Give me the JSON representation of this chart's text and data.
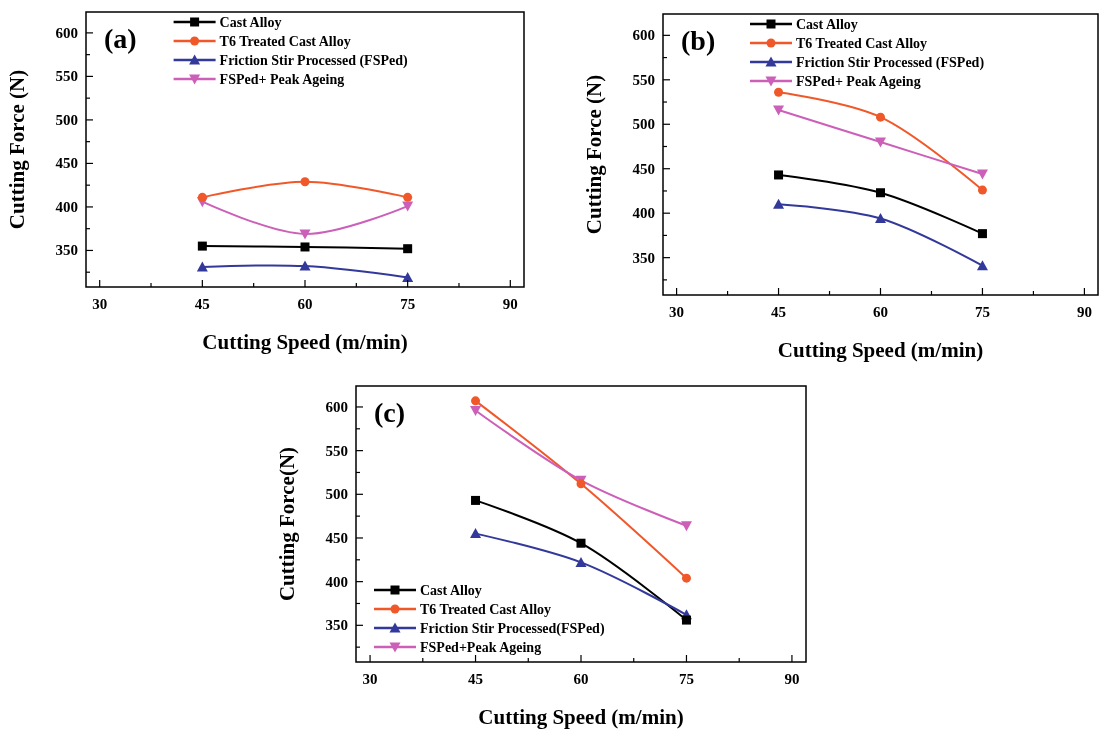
{
  "chart_data": [
    {
      "type": "line",
      "title": "(a)",
      "xlabel": "Cutting Speed (m/min)",
      "ylabel": "Cutting Force (N)",
      "x": [
        45,
        60,
        75
      ],
      "xlim": [
        28,
        92
      ],
      "ylim": [
        308,
        624
      ],
      "xticks": [
        30,
        {
          "value": 37.5,
          "label": null
        },
        45,
        {
          "value": 52.5,
          "label": null
        },
        60,
        {
          "value": 67.5,
          "label": null
        },
        75,
        {
          "value": 82.5,
          "label": null
        },
        90
      ],
      "yticks": [
        {
          "value": 325,
          "label": null
        },
        350,
        {
          "value": 375,
          "label": null
        },
        400,
        {
          "value": 425,
          "label": null
        },
        450,
        {
          "value": 475,
          "label": null
        },
        500,
        {
          "value": 525,
          "label": null
        },
        550,
        {
          "value": 575,
          "label": null
        },
        600
      ],
      "legend": "top",
      "grid": false,
      "line_style": "solid",
      "series": [
        {
          "name": "Cast Alloy",
          "color": "#000000",
          "marker": "square",
          "values": [
            355,
            354,
            352
          ]
        },
        {
          "name": "T6 Treated Cast Alloy",
          "color": "#f0582a",
          "marker": "circle",
          "values": [
            411,
            429,
            411
          ]
        },
        {
          "name": "Friction Stir Processed (FSPed)",
          "color": "#33399a",
          "marker": "triangle",
          "values": [
            331,
            332,
            319
          ]
        },
        {
          "name": "FSPed+ Peak Ageing",
          "color": "#cc5fb8",
          "marker": "triangle-down",
          "values": [
            406,
            369,
            401
          ]
        }
      ]
    },
    {
      "type": "line",
      "title": "(b)",
      "xlabel": "Cutting Speed (m/min)",
      "ylabel": "Cutting Force (N)",
      "x": [
        45,
        60,
        75
      ],
      "xlim": [
        28,
        92
      ],
      "ylim": [
        308,
        624
      ],
      "xticks": [
        30,
        {
          "value": 37.5,
          "label": null
        },
        45,
        {
          "value": 52.5,
          "label": null
        },
        60,
        {
          "value": 67.5,
          "label": null
        },
        75,
        {
          "value": 82.5,
          "label": null
        },
        90
      ],
      "yticks": [
        {
          "value": 325,
          "label": null
        },
        350,
        {
          "value": 375,
          "label": null
        },
        400,
        {
          "value": 425,
          "label": null
        },
        450,
        {
          "value": 475,
          "label": null
        },
        500,
        {
          "value": 525,
          "label": null
        },
        550,
        {
          "value": 575,
          "label": null
        },
        600
      ],
      "legend": "top",
      "grid": false,
      "line_style": "solid",
      "series": [
        {
          "name": "Cast Alloy",
          "color": "#000000",
          "marker": "square",
          "values": [
            443,
            423,
            377
          ]
        },
        {
          "name": "T6 Treated Cast Alloy",
          "color": "#f0582a",
          "marker": "circle",
          "values": [
            536,
            508,
            426
          ]
        },
        {
          "name": "Friction Stir Processed (FSPed)",
          "color": "#33399a",
          "marker": "triangle",
          "values": [
            410,
            394,
            341
          ]
        },
        {
          "name": "FSPed+ Peak Ageing",
          "color": "#cc5fb8",
          "marker": "triangle-down",
          "values": [
            516,
            480,
            444
          ]
        }
      ]
    },
    {
      "type": "line",
      "title": "(c)",
      "xlabel": "Cutting Speed (m/min)",
      "ylabel": "Cutting Force(N)",
      "x": [
        45,
        60,
        75
      ],
      "xlim": [
        28,
        92
      ],
      "ylim": [
        308,
        624
      ],
      "xticks": [
        30,
        {
          "value": 37.5,
          "label": null
        },
        45,
        {
          "value": 52.5,
          "label": null
        },
        60,
        {
          "value": 67.5,
          "label": null
        },
        75,
        {
          "value": 82.5,
          "label": null
        },
        90
      ],
      "yticks": [
        {
          "value": 325,
          "label": null
        },
        350,
        {
          "value": 375,
          "label": null
        },
        400,
        {
          "value": 425,
          "label": null
        },
        450,
        {
          "value": 475,
          "label": null
        },
        500,
        {
          "value": 525,
          "label": null
        },
        550,
        {
          "value": 575,
          "label": null
        },
        600
      ],
      "legend": "bottom left",
      "grid": false,
      "line_style": "solid",
      "series": [
        {
          "name": "Cast Alloy",
          "color": "#000000",
          "marker": "square",
          "values": [
            493,
            444,
            356
          ]
        },
        {
          "name": "T6 Treated Cast Alloy",
          "color": "#f0582a",
          "marker": "circle",
          "values": [
            607,
            512,
            404
          ]
        },
        {
          "name": "Friction Stir Processed(FSPed)",
          "color": "#33399a",
          "marker": "triangle",
          "values": [
            455,
            422,
            362
          ]
        },
        {
          "name": "FSPed+Peak Ageing",
          "color": "#cc5fb8",
          "marker": "triangle-down",
          "values": [
            596,
            516,
            464
          ]
        }
      ]
    }
  ]
}
